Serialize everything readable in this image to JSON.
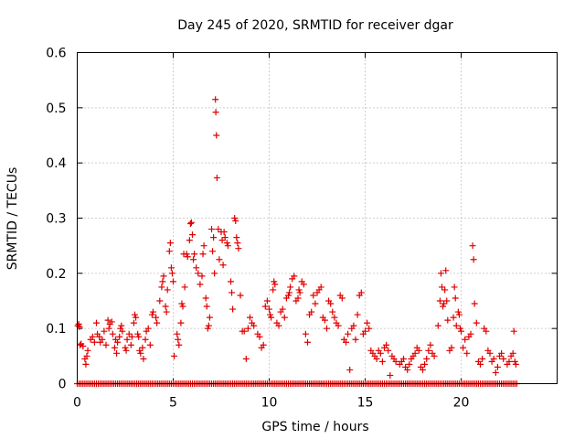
{
  "chart_data": {
    "type": "scatter",
    "title": "Day 245 of 2020, SRMTID for receiver dgar",
    "xlabel": "GPS time / hours",
    "ylabel": "SRMTID / TECUs",
    "xlim": [
      0,
      25
    ],
    "ylim": [
      0,
      0.6
    ],
    "xticks": [
      "0",
      "5",
      "10",
      "15",
      "20"
    ],
    "yticks": [
      "0",
      "0.1",
      "0.2",
      "0.3",
      "0.4",
      "0.5",
      "0.6"
    ],
    "grid": true,
    "marker": "+",
    "color": "#e00000",
    "series": [
      {
        "name": "SRMTID",
        "points": [
          [
            0.03,
            0.105
          ],
          [
            0.08,
            0.108
          ],
          [
            0.12,
            0.103
          ],
          [
            0.15,
            0.07
          ],
          [
            0.2,
            0.072
          ],
          [
            0.3,
            0.068
          ],
          [
            0.4,
            0.045
          ],
          [
            0.45,
            0.035
          ],
          [
            0.5,
            0.05
          ],
          [
            0.55,
            0.06
          ],
          [
            0.7,
            0.08
          ],
          [
            0.8,
            0.085
          ],
          [
            0.9,
            0.075
          ],
          [
            1.0,
            0.11
          ],
          [
            1.05,
            0.09
          ],
          [
            1.15,
            0.085
          ],
          [
            1.2,
            0.075
          ],
          [
            1.3,
            0.08
          ],
          [
            1.4,
            0.095
          ],
          [
            1.5,
            0.07
          ],
          [
            1.6,
            0.115
          ],
          [
            1.65,
            0.1
          ],
          [
            1.7,
            0.108
          ],
          [
            1.8,
            0.112
          ],
          [
            1.85,
            0.09
          ],
          [
            1.95,
            0.065
          ],
          [
            2.0,
            0.08
          ],
          [
            2.05,
            0.055
          ],
          [
            2.1,
            0.075
          ],
          [
            2.2,
            0.085
          ],
          [
            2.25,
            0.1
          ],
          [
            2.3,
            0.105
          ],
          [
            2.35,
            0.095
          ],
          [
            2.5,
            0.065
          ],
          [
            2.55,
            0.06
          ],
          [
            2.6,
            0.08
          ],
          [
            2.7,
            0.09
          ],
          [
            2.8,
            0.07
          ],
          [
            2.85,
            0.085
          ],
          [
            2.95,
            0.11
          ],
          [
            3.0,
            0.125
          ],
          [
            3.05,
            0.12
          ],
          [
            3.15,
            0.09
          ],
          [
            3.2,
            0.085
          ],
          [
            3.25,
            0.06
          ],
          [
            3.3,
            0.055
          ],
          [
            3.4,
            0.065
          ],
          [
            3.45,
            0.045
          ],
          [
            3.55,
            0.08
          ],
          [
            3.6,
            0.095
          ],
          [
            3.7,
            0.1
          ],
          [
            3.8,
            0.07
          ],
          [
            3.9,
            0.125
          ],
          [
            3.95,
            0.13
          ],
          [
            4.1,
            0.12
          ],
          [
            4.15,
            0.11
          ],
          [
            4.3,
            0.15
          ],
          [
            4.4,
            0.175
          ],
          [
            4.45,
            0.185
          ],
          [
            4.5,
            0.195
          ],
          [
            4.6,
            0.14
          ],
          [
            4.65,
            0.13
          ],
          [
            4.7,
            0.17
          ],
          [
            4.8,
            0.24
          ],
          [
            4.85,
            0.255
          ],
          [
            4.9,
            0.21
          ],
          [
            4.95,
            0.2
          ],
          [
            5.0,
            0.185
          ],
          [
            5.05,
            0.05
          ],
          [
            5.2,
            0.09
          ],
          [
            5.25,
            0.08
          ],
          [
            5.3,
            0.07
          ],
          [
            5.4,
            0.11
          ],
          [
            5.45,
            0.145
          ],
          [
            5.5,
            0.14
          ],
          [
            5.55,
            0.235
          ],
          [
            5.6,
            0.175
          ],
          [
            5.7,
            0.235
          ],
          [
            5.75,
            0.23
          ],
          [
            5.85,
            0.26
          ],
          [
            5.9,
            0.29
          ],
          [
            5.95,
            0.292
          ],
          [
            6.0,
            0.27
          ],
          [
            6.05,
            0.225
          ],
          [
            6.1,
            0.235
          ],
          [
            6.2,
            0.21
          ],
          [
            6.3,
            0.2
          ],
          [
            6.4,
            0.18
          ],
          [
            6.5,
            0.195
          ],
          [
            6.55,
            0.235
          ],
          [
            6.6,
            0.25
          ],
          [
            6.7,
            0.155
          ],
          [
            6.75,
            0.14
          ],
          [
            6.8,
            0.1
          ],
          [
            6.85,
            0.105
          ],
          [
            6.9,
            0.12
          ],
          [
            7.0,
            0.28
          ],
          [
            7.05,
            0.24
          ],
          [
            7.1,
            0.265
          ],
          [
            7.15,
            0.2
          ],
          [
            7.2,
            0.515
          ],
          [
            7.22,
            0.492
          ],
          [
            7.25,
            0.45
          ],
          [
            7.28,
            0.373
          ],
          [
            7.35,
            0.28
          ],
          [
            7.4,
            0.225
          ],
          [
            7.5,
            0.275
          ],
          [
            7.55,
            0.26
          ],
          [
            7.6,
            0.215
          ],
          [
            7.65,
            0.275
          ],
          [
            7.7,
            0.265
          ],
          [
            7.8,
            0.255
          ],
          [
            7.85,
            0.25
          ],
          [
            8.0,
            0.185
          ],
          [
            8.05,
            0.165
          ],
          [
            8.1,
            0.135
          ],
          [
            8.2,
            0.3
          ],
          [
            8.25,
            0.295
          ],
          [
            8.3,
            0.265
          ],
          [
            8.35,
            0.255
          ],
          [
            8.4,
            0.245
          ],
          [
            8.5,
            0.16
          ],
          [
            8.6,
            0.095
          ],
          [
            8.7,
            0.095
          ],
          [
            8.8,
            0.045
          ],
          [
            8.9,
            0.1
          ],
          [
            9.0,
            0.12
          ],
          [
            9.1,
            0.11
          ],
          [
            9.2,
            0.105
          ],
          [
            9.4,
            0.09
          ],
          [
            9.5,
            0.085
          ],
          [
            9.6,
            0.065
          ],
          [
            9.7,
            0.07
          ],
          [
            9.8,
            0.14
          ],
          [
            9.9,
            0.15
          ],
          [
            10.0,
            0.135
          ],
          [
            10.05,
            0.125
          ],
          [
            10.1,
            0.12
          ],
          [
            10.2,
            0.17
          ],
          [
            10.25,
            0.185
          ],
          [
            10.3,
            0.18
          ],
          [
            10.4,
            0.11
          ],
          [
            10.5,
            0.105
          ],
          [
            10.6,
            0.13
          ],
          [
            10.7,
            0.135
          ],
          [
            10.8,
            0.12
          ],
          [
            10.9,
            0.155
          ],
          [
            11.0,
            0.16
          ],
          [
            11.05,
            0.165
          ],
          [
            11.1,
            0.175
          ],
          [
            11.2,
            0.19
          ],
          [
            11.3,
            0.195
          ],
          [
            11.4,
            0.15
          ],
          [
            11.5,
            0.155
          ],
          [
            11.55,
            0.17
          ],
          [
            11.6,
            0.165
          ],
          [
            11.7,
            0.185
          ],
          [
            11.8,
            0.18
          ],
          [
            11.9,
            0.09
          ],
          [
            12.0,
            0.075
          ],
          [
            12.1,
            0.125
          ],
          [
            12.2,
            0.13
          ],
          [
            12.3,
            0.16
          ],
          [
            12.4,
            0.145
          ],
          [
            12.5,
            0.165
          ],
          [
            12.6,
            0.17
          ],
          [
            12.7,
            0.175
          ],
          [
            12.8,
            0.12
          ],
          [
            12.9,
            0.115
          ],
          [
            13.0,
            0.1
          ],
          [
            13.1,
            0.15
          ],
          [
            13.2,
            0.145
          ],
          [
            13.3,
            0.13
          ],
          [
            13.4,
            0.12
          ],
          [
            13.5,
            0.11
          ],
          [
            13.6,
            0.105
          ],
          [
            13.7,
            0.16
          ],
          [
            13.8,
            0.155
          ],
          [
            13.9,
            0.08
          ],
          [
            14.0,
            0.075
          ],
          [
            14.1,
            0.09
          ],
          [
            14.2,
            0.025
          ],
          [
            14.3,
            0.1
          ],
          [
            14.4,
            0.105
          ],
          [
            14.5,
            0.08
          ],
          [
            14.6,
            0.125
          ],
          [
            14.7,
            0.16
          ],
          [
            14.8,
            0.165
          ],
          [
            14.9,
            0.09
          ],
          [
            15.0,
            0.095
          ],
          [
            15.1,
            0.11
          ],
          [
            15.2,
            0.1
          ],
          [
            15.3,
            0.06
          ],
          [
            15.4,
            0.055
          ],
          [
            15.5,
            0.05
          ],
          [
            15.6,
            0.045
          ],
          [
            15.7,
            0.06
          ],
          [
            15.8,
            0.055
          ],
          [
            15.9,
            0.04
          ],
          [
            16.0,
            0.065
          ],
          [
            16.1,
            0.07
          ],
          [
            16.2,
            0.06
          ],
          [
            16.3,
            0.015
          ],
          [
            16.4,
            0.05
          ],
          [
            16.5,
            0.045
          ],
          [
            16.6,
            0.04
          ],
          [
            16.8,
            0.035
          ],
          [
            16.9,
            0.04
          ],
          [
            17.0,
            0.045
          ],
          [
            17.1,
            0.03
          ],
          [
            17.2,
            0.025
          ],
          [
            17.3,
            0.035
          ],
          [
            17.4,
            0.045
          ],
          [
            17.5,
            0.05
          ],
          [
            17.6,
            0.055
          ],
          [
            17.7,
            0.065
          ],
          [
            17.8,
            0.06
          ],
          [
            17.9,
            0.03
          ],
          [
            18.0,
            0.025
          ],
          [
            18.1,
            0.035
          ],
          [
            18.2,
            0.045
          ],
          [
            18.3,
            0.06
          ],
          [
            18.4,
            0.07
          ],
          [
            18.5,
            0.055
          ],
          [
            18.6,
            0.05
          ],
          [
            18.8,
            0.105
          ],
          [
            18.9,
            0.15
          ],
          [
            18.95,
            0.2
          ],
          [
            19.0,
            0.175
          ],
          [
            19.05,
            0.14
          ],
          [
            19.1,
            0.145
          ],
          [
            19.15,
            0.17
          ],
          [
            19.2,
            0.205
          ],
          [
            19.25,
            0.15
          ],
          [
            19.3,
            0.115
          ],
          [
            19.4,
            0.06
          ],
          [
            19.5,
            0.065
          ],
          [
            19.6,
            0.12
          ],
          [
            19.65,
            0.175
          ],
          [
            19.7,
            0.155
          ],
          [
            19.75,
            0.105
          ],
          [
            19.85,
            0.13
          ],
          [
            19.9,
            0.125
          ],
          [
            19.95,
            0.1
          ],
          [
            20.0,
            0.095
          ],
          [
            20.1,
            0.065
          ],
          [
            20.2,
            0.08
          ],
          [
            20.3,
            0.055
          ],
          [
            20.4,
            0.085
          ],
          [
            20.5,
            0.09
          ],
          [
            20.6,
            0.25
          ],
          [
            20.65,
            0.225
          ],
          [
            20.7,
            0.145
          ],
          [
            20.8,
            0.11
          ],
          [
            20.9,
            0.04
          ],
          [
            21.0,
            0.035
          ],
          [
            21.1,
            0.045
          ],
          [
            21.2,
            0.1
          ],
          [
            21.3,
            0.095
          ],
          [
            21.4,
            0.06
          ],
          [
            21.5,
            0.055
          ],
          [
            21.6,
            0.04
          ],
          [
            21.7,
            0.045
          ],
          [
            21.8,
            0.02
          ],
          [
            21.9,
            0.03
          ],
          [
            22.0,
            0.05
          ],
          [
            22.1,
            0.055
          ],
          [
            22.2,
            0.045
          ],
          [
            22.4,
            0.035
          ],
          [
            22.5,
            0.04
          ],
          [
            22.6,
            0.05
          ],
          [
            22.7,
            0.055
          ],
          [
            22.75,
            0.095
          ],
          [
            22.8,
            0.04
          ],
          [
            22.85,
            0.035
          ]
        ]
      }
    ],
    "zero_baseline_x_range": [
      0,
      22.9
    ]
  }
}
